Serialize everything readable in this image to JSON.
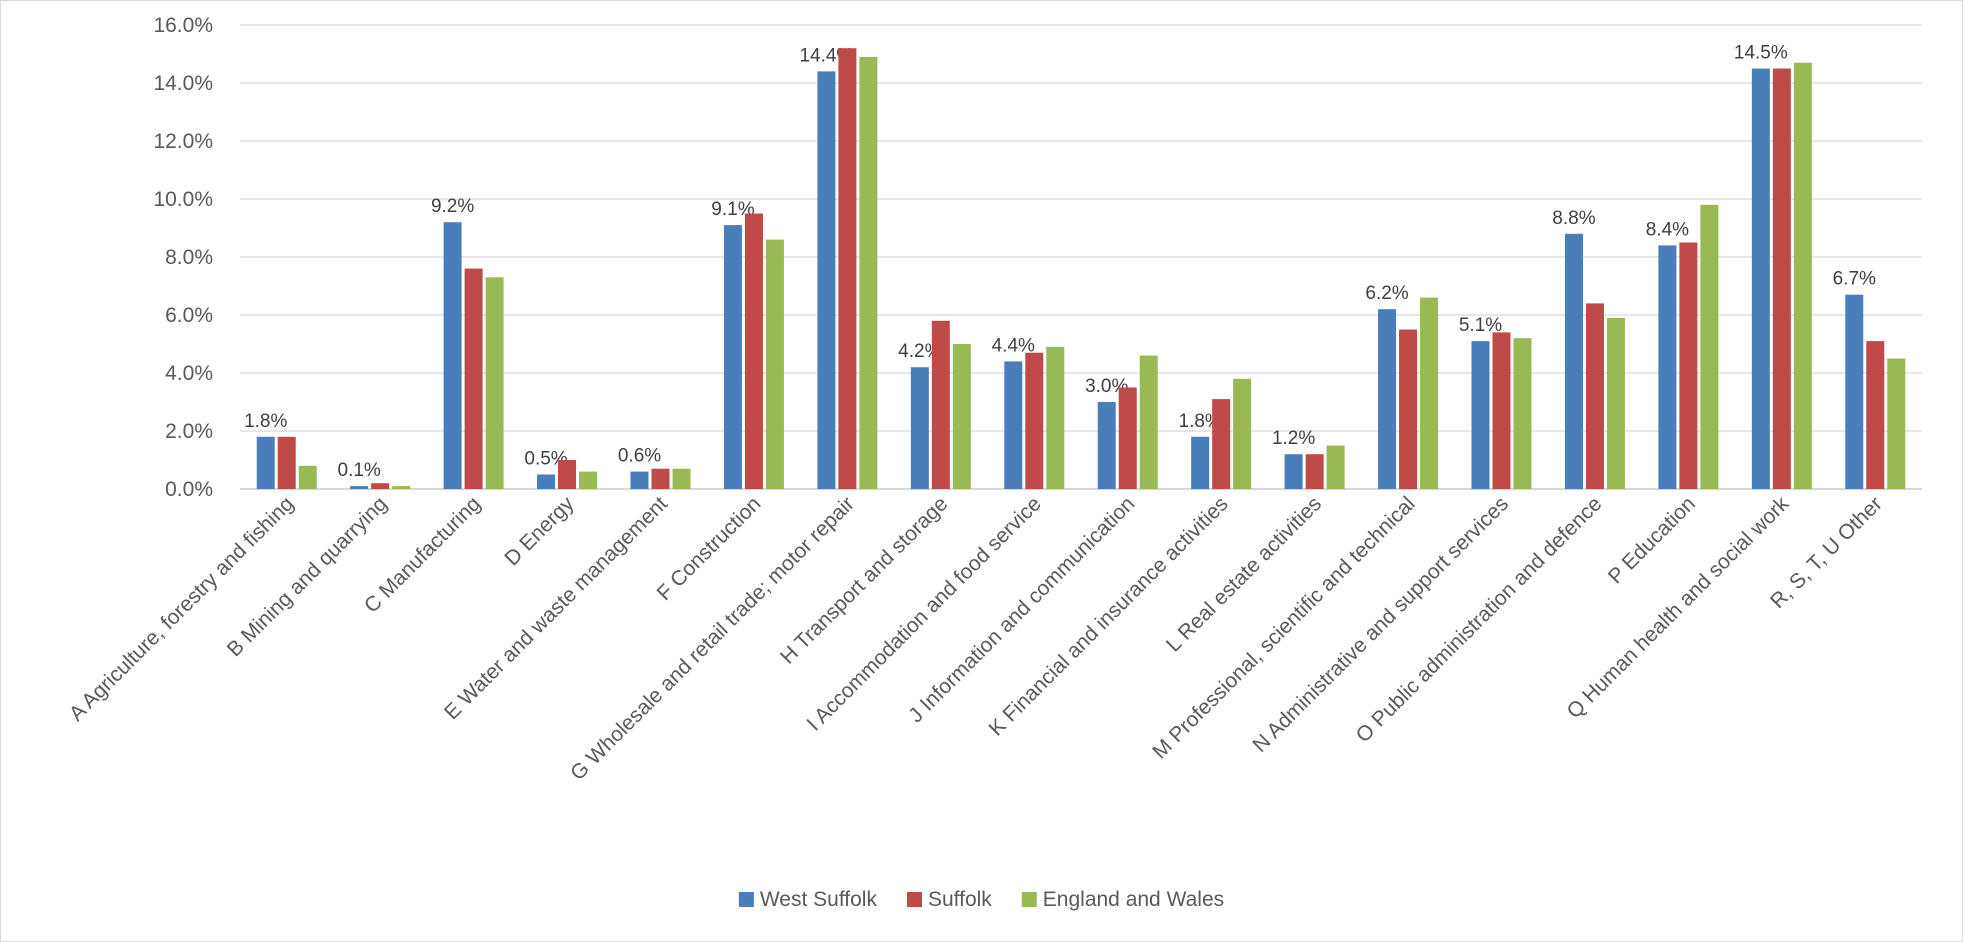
{
  "chart_data": {
    "type": "bar",
    "title": "",
    "xlabel": "",
    "ylabel": "",
    "ylim": [
      0,
      16
    ],
    "y_tick_step": 2,
    "y_tick_format": "percent_1dp",
    "grid": "horizontal",
    "legend_position": "bottom",
    "categories": [
      "A Agriculture, forestry and fishing",
      "B Mining and quarrying",
      "C Manufacturing",
      "D Energy",
      "E Water and waste management",
      "F Construction",
      "G Wholesale and retail trade; motor repair",
      "H Transport and storage",
      "I Accommodation and food service",
      "J Information and communication",
      "K Financial and insurance activities",
      "L Real estate activities",
      "M Professional, scientific and technical",
      "N Administrative and support services",
      "O Public administration and defence",
      "P Education",
      "Q Human health and social work",
      "R, S, T, U Other"
    ],
    "series": [
      {
        "name": "West Suffolk",
        "color": "#4a7ebb",
        "values": [
          1.8,
          0.1,
          9.2,
          0.5,
          0.6,
          9.1,
          14.4,
          4.2,
          4.4,
          3.0,
          1.8,
          1.2,
          6.2,
          5.1,
          8.8,
          8.4,
          14.5,
          6.7
        ],
        "data_labels": [
          "1.8%",
          "0.1%",
          "9.2%",
          "0.5%",
          "0.6%",
          "9.1%",
          "14.4%",
          "4.2%",
          "4.4%",
          "3.0%",
          "1.8%",
          "1.2%",
          "6.2%",
          "5.1%",
          "8.8%",
          "8.4%",
          "14.5%",
          "6.7%"
        ]
      },
      {
        "name": "Suffolk",
        "color": "#be4b48",
        "values": [
          1.8,
          0.2,
          7.6,
          1.0,
          0.7,
          9.5,
          15.2,
          5.8,
          4.7,
          3.5,
          3.1,
          1.2,
          5.5,
          5.4,
          6.4,
          8.5,
          14.5,
          5.1
        ]
      },
      {
        "name": "England and Wales",
        "color": "#98b954",
        "values": [
          0.8,
          0.1,
          7.3,
          0.6,
          0.7,
          8.6,
          14.9,
          5.0,
          4.9,
          4.6,
          3.8,
          1.5,
          6.6,
          5.2,
          5.9,
          9.8,
          14.7,
          4.5
        ]
      }
    ]
  }
}
